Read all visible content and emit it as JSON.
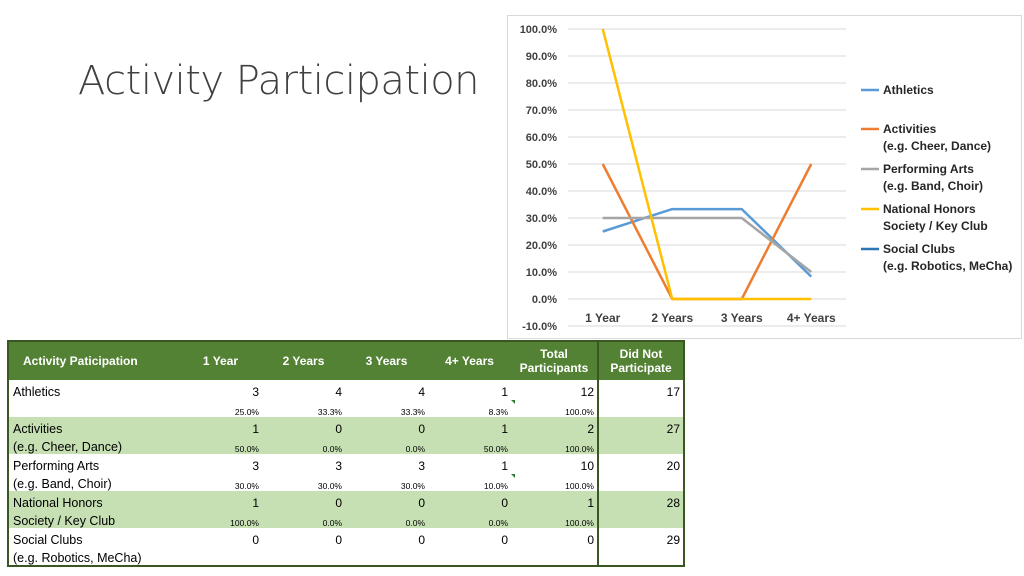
{
  "page": {
    "title": "Activity Participation"
  },
  "chart_data": {
    "type": "line",
    "categories": [
      "1 Year",
      "2 Years",
      "3 Years",
      "4+ Years"
    ],
    "y_ticks": [
      "100.0%",
      "90.0%",
      "80.0%",
      "70.0%",
      "60.0%",
      "50.0%",
      "40.0%",
      "30.0%",
      "20.0%",
      "10.0%",
      "0.0%",
      "-10.0%"
    ],
    "ylim": [
      -10,
      100
    ],
    "legend_position": "right",
    "series": [
      {
        "name": [
          "Athletics"
        ],
        "color": "#5b9bd5",
        "values": [
          25,
          33.3,
          33.3,
          8.3
        ]
      },
      {
        "name": [
          "Activities",
          "(e.g. Cheer, Dance)"
        ],
        "color": "#ed7d31",
        "values": [
          50,
          0,
          0,
          50
        ]
      },
      {
        "name": [
          "Performing Arts",
          "(e.g. Band, Choir)"
        ],
        "color": "#a5a5a5",
        "values": [
          30,
          30,
          30,
          10
        ]
      },
      {
        "name": [
          "National Honors",
          "Society / Key Club"
        ],
        "color": "#ffc000",
        "values": [
          100,
          0,
          0,
          0
        ]
      },
      {
        "name": [
          "Social Clubs",
          "(e.g. Robotics, MeCha)"
        ],
        "color": "#2e75b6",
        "values": [
          null,
          null,
          null,
          null
        ]
      }
    ]
  },
  "table": {
    "headers": [
      "Activity Paticipation",
      "1 Year",
      "2 Years",
      "3 Years",
      "4+ Years",
      "Total",
      "Participants",
      "Did Not",
      "Participate"
    ],
    "rows": [
      {
        "label1": "Athletics",
        "label2": "",
        "counts": [
          "3",
          "4",
          "4",
          "1",
          "12"
        ],
        "pcts": [
          "25.0%",
          "33.3%",
          "33.3%",
          "8.3%",
          "100.0%"
        ],
        "did_not": "17"
      },
      {
        "label1": "Activities",
        "label2": "(e.g. Cheer, Dance)",
        "counts": [
          "1",
          "0",
          "0",
          "1",
          "2"
        ],
        "pcts": [
          "50.0%",
          "0.0%",
          "0.0%",
          "50.0%",
          "100.0%"
        ],
        "did_not": "27"
      },
      {
        "label1": "Performing Arts",
        "label2": "(e.g. Band, Choir)",
        "counts": [
          "3",
          "3",
          "3",
          "1",
          "10"
        ],
        "pcts": [
          "30.0%",
          "30.0%",
          "30.0%",
          "10.0%",
          "100.0%"
        ],
        "did_not": "20"
      },
      {
        "label1": "National Honors",
        "label2": "Society / Key Club",
        "counts": [
          "1",
          "0",
          "0",
          "0",
          "1"
        ],
        "pcts": [
          "100.0%",
          "0.0%",
          "0.0%",
          "0.0%",
          "100.0%"
        ],
        "did_not": "28"
      },
      {
        "label1": "Social Clubs",
        "label2": "(e.g. Robotics, MeCha)",
        "counts": [
          "0",
          "0",
          "0",
          "0",
          "0"
        ],
        "pcts": [
          "",
          "",
          "",
          "",
          ""
        ],
        "did_not": "29"
      }
    ]
  }
}
